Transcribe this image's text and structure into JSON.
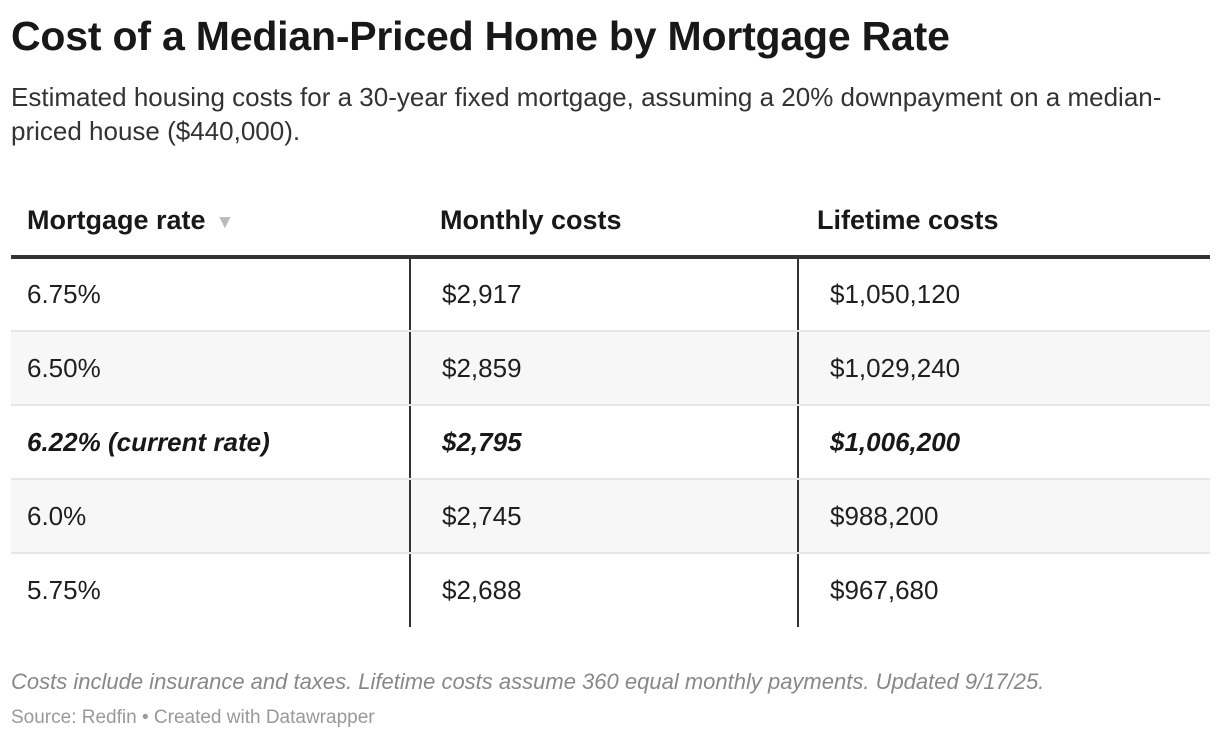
{
  "title": "Cost of a Median-Priced Home by Mortgage Rate",
  "subtitle": "Estimated housing costs for a 30-year fixed mortgage, assuming a 20% downpayment on a median-priced house ($440,000).",
  "notes": "Costs include insurance and taxes. Lifetime costs assume 360 equal monthly payments. Updated 9/17/25.",
  "source": "Source: Redfin • Created with Datawrapper",
  "sort_indicator": "▼",
  "chart_data": {
    "type": "table",
    "columns": [
      "Mortgage rate",
      "Monthly costs",
      "Lifetime costs"
    ],
    "rows": [
      [
        "6.75%",
        "$2,917",
        "$1,050,120"
      ],
      [
        "6.50%",
        "$2,859",
        "$1,029,240"
      ],
      [
        "6.22% (current rate)",
        "$2,795",
        "$1,006,200"
      ],
      [
        "6.0%",
        "$2,745",
        "$988,200"
      ],
      [
        "5.75%",
        "$2,688",
        "$967,680"
      ]
    ],
    "highlighted_row": 2,
    "sorted_column": 0,
    "sort_direction": "descending"
  }
}
